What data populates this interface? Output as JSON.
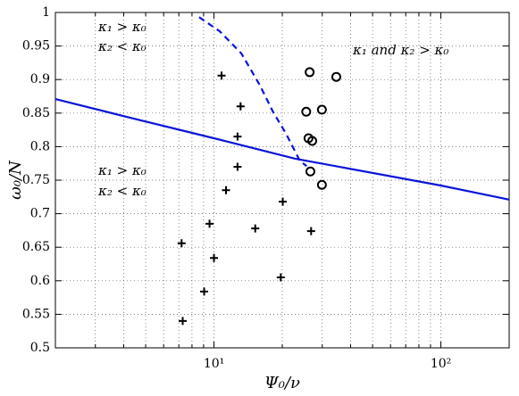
{
  "chart_data": {
    "type": "scatter",
    "xlabel": "Ψ₀/ν",
    "ylabel": "ω₀/N",
    "xscale": "log",
    "grid": true,
    "xlim": [
      2,
      200
    ],
    "ylim": [
      0.5,
      1
    ],
    "xticks": [
      {
        "value": 10,
        "label": "10¹"
      },
      {
        "value": 100,
        "label": "10²"
      }
    ],
    "xminorticks": [
      2,
      3,
      4,
      5,
      6,
      7,
      8,
      9,
      20,
      30,
      40,
      50,
      60,
      70,
      80,
      90,
      200
    ],
    "yticks": [
      0.5,
      0.55,
      0.6,
      0.65,
      0.7,
      0.75,
      0.8,
      0.85,
      0.9,
      0.95,
      1
    ],
    "annotations": [
      "κ₁ > κ₀",
      "κ₂ < κ₀",
      "κ₁ and κ₂ > κ₀",
      "κ₁ > κ₀",
      "κ₂ < κ₀"
    ],
    "series": [
      {
        "style": "solid",
        "color": "#0a14d8",
        "x": [
          2,
          4.4,
          10,
          22.8,
          100,
          200
        ],
        "values": [
          0.871,
          0.842,
          0.8125,
          0.782,
          0.742,
          0.721
        ]
      },
      {
        "style": "dashed",
        "color": "#0a14d8",
        "x": [
          8.6,
          10.6,
          13.2,
          15.9,
          18.2,
          20.8,
          23.9,
          25.6
        ],
        "values": [
          0.993,
          0.972,
          0.939,
          0.892,
          0.852,
          0.819,
          0.779,
          0.771
        ]
      },
      {
        "style": "plus",
        "color": "#000000",
        "x": [
          10.8,
          13.1,
          12.7,
          12.7,
          11.3,
          9.56,
          10,
          7.2,
          9.05,
          7.28,
          15.2,
          20.1,
          19.7,
          26.8
        ],
        "values": [
          0.906,
          0.86,
          0.815,
          0.77,
          0.735,
          0.685,
          0.634,
          0.656,
          0.584,
          0.54,
          0.678,
          0.718,
          0.605,
          0.674
        ]
      },
      {
        "style": "circle",
        "color": "#000000",
        "x": [
          26.4,
          34.6,
          25.5,
          29.9,
          26.1,
          27.1,
          26.6,
          29.9
        ],
        "values": [
          0.911,
          0.904,
          0.852,
          0.855,
          0.8125,
          0.8085,
          0.763,
          0.743
        ]
      }
    ]
  }
}
